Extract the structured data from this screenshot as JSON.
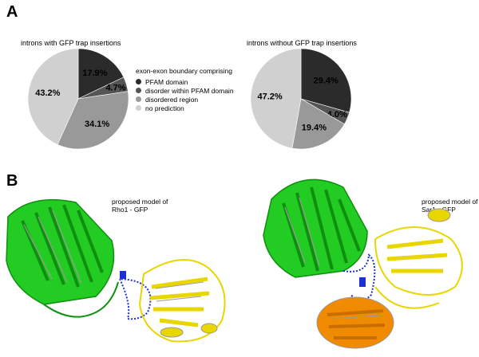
{
  "panels": {
    "a": "A",
    "b": "B"
  },
  "legend": {
    "title": "exon-exon boundary comprising",
    "items": [
      {
        "label": "PFAM domain",
        "color": "#2b2b2b"
      },
      {
        "label": "disorder within PFAM domain",
        "color": "#555555"
      },
      {
        "label": "disordered region",
        "color": "#999999"
      },
      {
        "label": "no prediction",
        "color": "#d0d0d0"
      }
    ]
  },
  "chart_data": [
    {
      "type": "pie",
      "title": "introns with GFP trap insertions",
      "categories": [
        "PFAM domain",
        "disorder within PFAM domain",
        "disordered region",
        "no prediction"
      ],
      "values": [
        17.9,
        4.7,
        34.1,
        43.2
      ],
      "labels": [
        "17.9%",
        "4.7%",
        "34.1%",
        "43.2%"
      ],
      "colors": [
        "#2b2b2b",
        "#555555",
        "#999999",
        "#d0d0d0"
      ]
    },
    {
      "type": "pie",
      "title": "introns without GFP trap insertions",
      "categories": [
        "PFAM domain",
        "disorder within PFAM domain",
        "disordered region",
        "no prediction"
      ],
      "values": [
        29.4,
        4.0,
        19.4,
        47.2
      ],
      "labels": [
        "29.4%",
        "4.0%",
        "19.4%",
        "47.2%"
      ],
      "colors": [
        "#2b2b2b",
        "#555555",
        "#999999",
        "#d0d0d0"
      ]
    }
  ],
  "models": [
    {
      "line1": "proposed model of",
      "line2": "Rho1 - GFP"
    },
    {
      "line1": "proposed model of",
      "line2": "Sar1 - GFP"
    }
  ],
  "colors": {
    "gfp": "#22cc22",
    "gfp_dark": "#0f8f0f",
    "rho": "#e8d600",
    "sar_orange": "#f08a00",
    "linker": "#1a2fd6",
    "coil": "#9a9a9a"
  }
}
